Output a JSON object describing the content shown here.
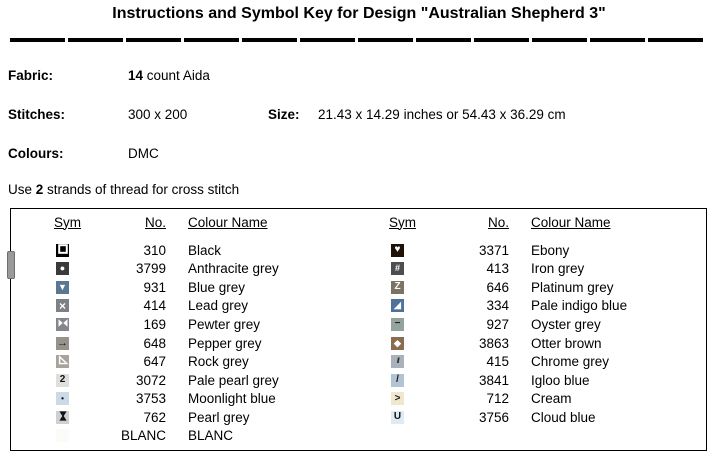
{
  "title": "Instructions and Symbol Key for Design \"Australian Shepherd 3\"",
  "info": {
    "fabric_label": "Fabric:",
    "fabric_bold": "14",
    "fabric_rest": " count Aida",
    "stitches_label": "Stitches:",
    "stitches_value": "300 x 200",
    "size_label": "Size:",
    "size_value": "21.43 x 14.29 inches or 54.43 x 36.29 cm",
    "colours_label": "Colours:",
    "colours_value": "DMC",
    "strands_prefix": "Use ",
    "strands_bold": "2",
    "strands_suffix": " strands of thread for cross stitch"
  },
  "key_table": {
    "headers": {
      "sym": "Sym",
      "no": "No.",
      "name": "Colour Name"
    },
    "left_rows": [
      {
        "glyph": "square-outline",
        "bg": "#000000",
        "fg": "#ffffff",
        "no": "310",
        "name": "Black"
      },
      {
        "glyph": "circle",
        "bg": "#3a3a3c",
        "fg": "#ffffff",
        "no": "3799",
        "name": "Anthracite grey"
      },
      {
        "glyph": "triangle-down",
        "bg": "#5a7894",
        "fg": "#ffffff",
        "no": "931",
        "name": "Blue grey"
      },
      {
        "glyph": "x",
        "bg": "#7d8084",
        "fg": "#ffffff",
        "no": "414",
        "name": "Lead grey"
      },
      {
        "glyph": "bowtie",
        "bg": "#83868a",
        "fg": "#ffffff",
        "no": "169",
        "name": "Pewter grey"
      },
      {
        "glyph": "arrow-right",
        "bg": "#95938a",
        "fg": "#1a1a1a",
        "no": "648",
        "name": "Pepper grey"
      },
      {
        "glyph": "corner-triangle",
        "bg": "#a8a49b",
        "fg": "#ffffff",
        "no": "647",
        "name": "Rock grey"
      },
      {
        "glyph": "digit-2",
        "bg": "#dde0da",
        "fg": "#111111",
        "no": "3072",
        "name": "Pale pearl grey"
      },
      {
        "glyph": "dot",
        "bg": "#ccd9e6",
        "fg": "#111111",
        "no": "3753",
        "name": "Moonlight blue"
      },
      {
        "glyph": "hourglass",
        "bg": "#cdd0d4",
        "fg": "#111111",
        "no": "762",
        "name": "Pearl grey"
      },
      {
        "glyph": "blank",
        "bg": "#fbfbf7",
        "fg": "#fbfbf7",
        "no": "BLANC",
        "name": "BLANC"
      }
    ],
    "right_rows": [
      {
        "glyph": "heart",
        "bg": "#1e1208",
        "fg": "#ffffff",
        "no": "3371",
        "name": "Ebony"
      },
      {
        "glyph": "hash",
        "bg": "#4c4e50",
        "fg": "#ffffff",
        "no": "413",
        "name": "Iron grey"
      },
      {
        "glyph": "letter-z",
        "bg": "#7c7266",
        "fg": "#ffffff",
        "no": "646",
        "name": "Platinum grey"
      },
      {
        "glyph": "triangle-lower-right",
        "bg": "#4f719a",
        "fg": "#ffffff",
        "no": "334",
        "name": "Pale indigo blue"
      },
      {
        "glyph": "dash",
        "bg": "#94a49c",
        "fg": "#1a1a1a",
        "no": "927",
        "name": "Oyster grey"
      },
      {
        "glyph": "diamond",
        "bg": "#8a6c50",
        "fg": "#ffffff",
        "no": "3863",
        "name": "Otter brown"
      },
      {
        "glyph": "triple-slash",
        "bg": "#a9b2ba",
        "fg": "#2a2a2a",
        "no": "415",
        "name": "Chrome grey"
      },
      {
        "glyph": "slash",
        "bg": "#b2c3d3",
        "fg": "#1a1a1a",
        "no": "3841",
        "name": "Igloo blue"
      },
      {
        "glyph": "greater-than",
        "bg": "#f1e7cf",
        "fg": "#1a1a1a",
        "no": "712",
        "name": "Cream"
      },
      {
        "glyph": "letter-u",
        "bg": "#dfeaf3",
        "fg": "#111111",
        "no": "3756",
        "name": "Cloud blue"
      }
    ]
  }
}
